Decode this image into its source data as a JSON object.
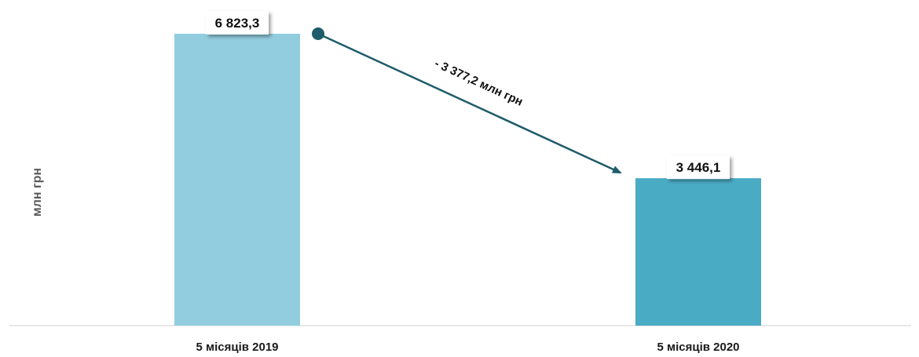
{
  "chart_data": {
    "type": "bar",
    "categories": [
      "5 місяців 2019",
      "5 місяців 2020"
    ],
    "values": [
      6823.3,
      3446.1
    ],
    "value_labels": [
      "6 823,3",
      "3 446,1"
    ],
    "ylabel": "млн грн",
    "ylim": [
      0,
      6823.3
    ],
    "grid": false,
    "colors": [
      "#92cddf",
      "#4aabc5"
    ],
    "annotation": {
      "text": "- 3 377,2 млн грн",
      "from": "5 місяців 2019",
      "to": "5 місяців 2020",
      "color": "#1f5c6b"
    }
  }
}
